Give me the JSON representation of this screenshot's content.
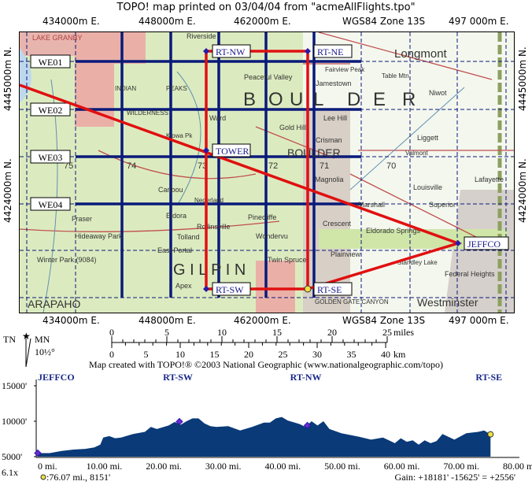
{
  "header": {
    "title": "TOPO! map printed on 03/04/04 from \"acmeAllFlights.tpo\""
  },
  "grid": {
    "eastings": [
      "434000m E.",
      "448000m E.",
      "462000m E.",
      "497 000m E."
    ],
    "datum": "WGS84 Zone 13S",
    "northings": [
      "4445000m N.",
      "4424000m N."
    ]
  },
  "colors": {
    "route": "#e01010",
    "grid": "#0a1a7a",
    "waypoint": "#2a1aa8",
    "profile_fill": "#0a3a78",
    "profile_peak": "#3a8080",
    "current": "#f0e040"
  },
  "waypoints": [
    {
      "name": "RT-NW",
      "icon": "diamond-icon"
    },
    {
      "name": "RT-NE",
      "icon": "diamond-icon"
    },
    {
      "name": "TOWER",
      "icon": "diamond-icon"
    },
    {
      "name": "RT-SW",
      "icon": "diamond-icon"
    },
    {
      "name": "RT-SE",
      "icon": "circle-icon"
    },
    {
      "name": "JEFFCO",
      "icon": "diamond-icon"
    }
  ],
  "grid_cells": [
    "WE01",
    "WE02",
    "WE03",
    "WE04"
  ],
  "places": [
    "LAKE GRANBY",
    "Riverside",
    "Peaceful Valley",
    "INDIAN",
    "PEAKS",
    "WILDERNESS",
    "Ward",
    "Kiowa Pk",
    "Fairview Peak",
    "Jamestown",
    "Longmont",
    "Table Mtn",
    "Niwot",
    "Lee Hill",
    "Gold Hill",
    "Crisman",
    "BOULDER",
    "Liggett",
    "Valmont",
    "B",
    "O",
    "U",
    "L",
    "D",
    "E",
    "R",
    "Caribou",
    "Nederland",
    "Eldora",
    "Rollinsville",
    "Tolland",
    "Hideaway Park",
    "Fraser",
    "Winter Park (9084)",
    "East Portal",
    "G I L P I N",
    "Apex",
    "Pinecliffe",
    "Wondervu",
    "Magnolia",
    "Marshall",
    "Louisville",
    "Superior",
    "Lafayette",
    "Crescent",
    "Eldorado Springs",
    "Plainview",
    "Twin Spruce",
    "Westminster",
    "GOLDEN GATE CANYON",
    "Federal Heights",
    "Standley Lake",
    "75",
    "74",
    "73",
    "72",
    "71",
    "70",
    "ARAPAHO"
  ],
  "legend": {
    "tn": "TN",
    "mn": "MN",
    "declination": "10½°",
    "tn_icon": "star-icon"
  },
  "scale": {
    "miles": [
      "0",
      "5",
      "10",
      "15",
      "20",
      "25"
    ],
    "miles_unit": "miles",
    "km": [
      "0",
      "5",
      "10",
      "15",
      "20",
      "25",
      "30",
      "35",
      "40"
    ],
    "km_unit": "km"
  },
  "credit": "Map created with TOPO!® ©2003 National Geographic (www.nationalgeographic.com/topo)",
  "chart_data": {
    "type": "area",
    "xlabel": "",
    "ylabel": "",
    "x_ticks": [
      "0 mi.",
      "10.00 mi.",
      "20.00 mi.",
      "30.00 mi.",
      "40.00 mi.",
      "50.00 mi.",
      "60.00 mi.",
      "70.00 mi.",
      "80.00 mi."
    ],
    "y_ticks": [
      "15000'",
      "10000'",
      "5000'"
    ],
    "xlim": [
      0,
      80
    ],
    "ylim": [
      5000,
      15000
    ],
    "x": [
      0,
      2,
      4,
      6,
      8,
      9.5,
      10.5,
      11,
      12,
      13,
      14,
      16,
      18,
      19,
      20,
      22,
      23,
      24,
      25,
      26,
      27,
      28,
      29,
      30,
      32,
      34,
      36,
      38,
      39,
      40,
      41,
      42,
      44,
      45,
      46,
      47,
      48,
      49,
      51,
      54,
      56,
      58,
      59,
      60,
      61,
      62,
      63,
      64,
      65,
      66,
      67,
      68,
      70,
      72,
      74,
      75,
      76.07
    ],
    "elevation_ft": [
      5500,
      5500,
      5800,
      6000,
      6100,
      6300,
      6700,
      7700,
      7900,
      7600,
      7700,
      8200,
      8500,
      9200,
      8900,
      9400,
      9900,
      9500,
      10000,
      10400,
      10400,
      9700,
      9300,
      9200,
      9300,
      8700,
      9200,
      9800,
      9800,
      10400,
      10600,
      10100,
      9600,
      9200,
      10000,
      9400,
      10000,
      8900,
      8300,
      7800,
      7400,
      7700,
      7300,
      6900,
      7600,
      7100,
      7300,
      6700,
      7300,
      6900,
      7200,
      8200,
      7400,
      8300,
      8500,
      8700,
      8151
    ],
    "waypoints": [
      {
        "name": "JEFFCO",
        "mi": 0,
        "ft": 5500
      },
      {
        "name": "RT-SW",
        "mi": 23.8,
        "ft": 9950
      },
      {
        "name": "RT-NW",
        "mi": 45.3,
        "ft": 9400
      },
      {
        "name": "RT-SE",
        "mi": 76.07,
        "ft": 8151
      }
    ],
    "magnification": "6.1x",
    "cursor_readout": ":76.07 mi., 8151'",
    "gain": "Gain: +18181' -15625' = +2556'"
  }
}
